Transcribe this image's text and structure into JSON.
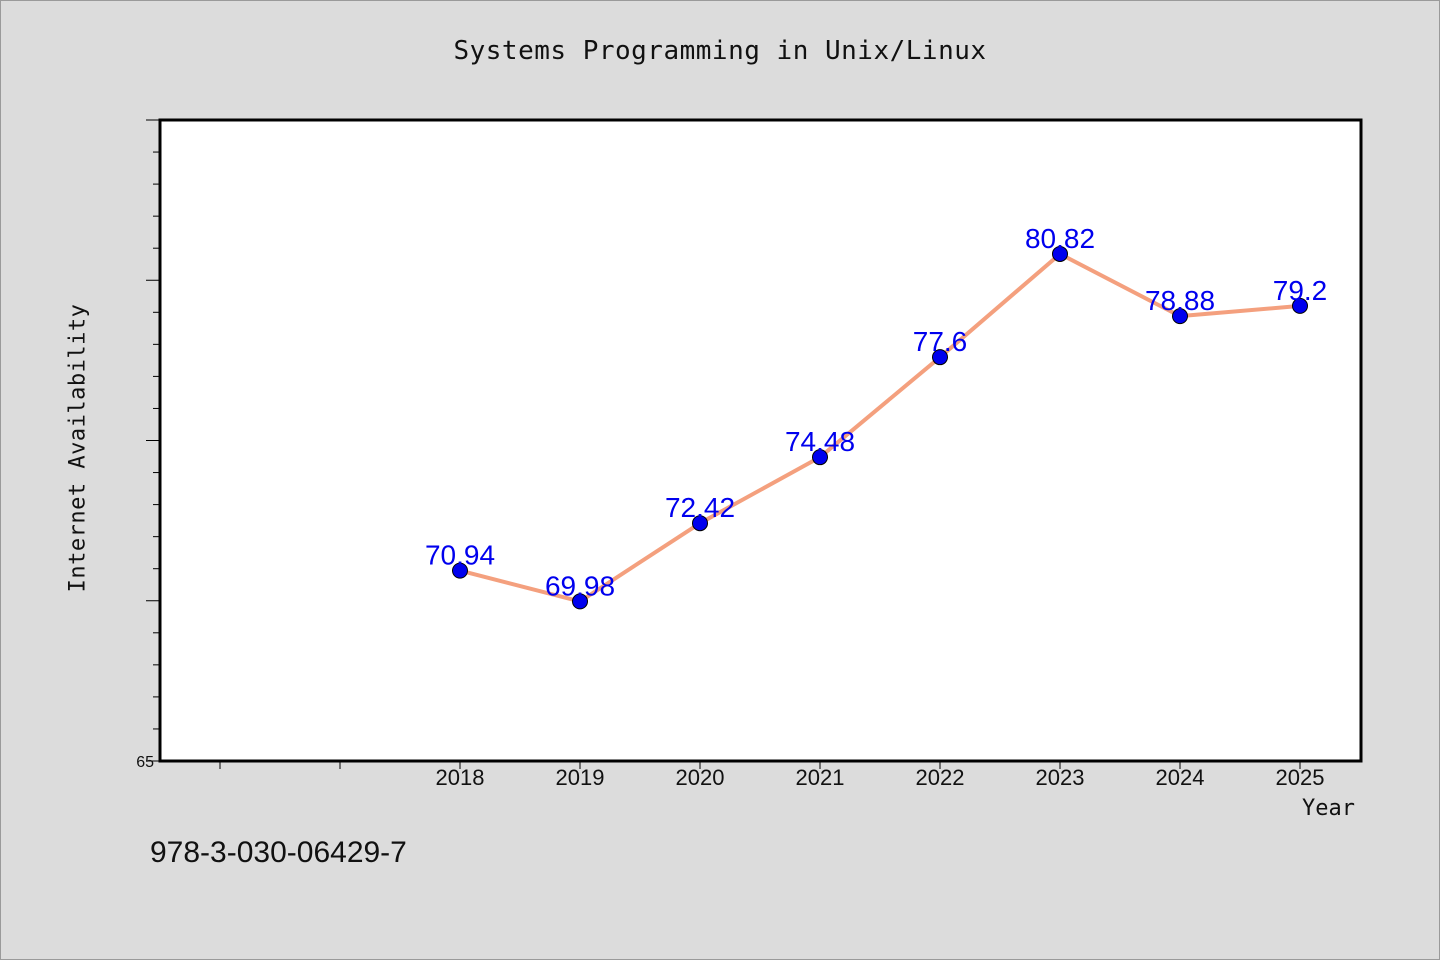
{
  "chart_data": {
    "type": "line",
    "title": "Systems Programming in Unix/Linux",
    "xlabel": "Year",
    "ylabel": "Internet Availability",
    "categories": [
      "2018",
      "2019",
      "2020",
      "2021",
      "2022",
      "2023",
      "2024",
      "2025"
    ],
    "series": [
      {
        "values": [
          70.94,
          69.98,
          72.42,
          74.48,
          77.6,
          80.82,
          78.88,
          79.2
        ],
        "data_labels": [
          "70.94",
          "69.98",
          "72.42",
          "74.48",
          "77.6",
          "80.82",
          "78.88",
          "79.2"
        ],
        "line_color": "#f4a07e",
        "marker_color": "#0000ee",
        "label_color": "#0000ee"
      }
    ],
    "ylim": [
      65,
      85
    ],
    "y_tick_labels": [
      "65"
    ],
    "x_positions_extra_ticks": 2,
    "grid": false,
    "legend": "none"
  },
  "footnote": "978-3-030-06429-7"
}
